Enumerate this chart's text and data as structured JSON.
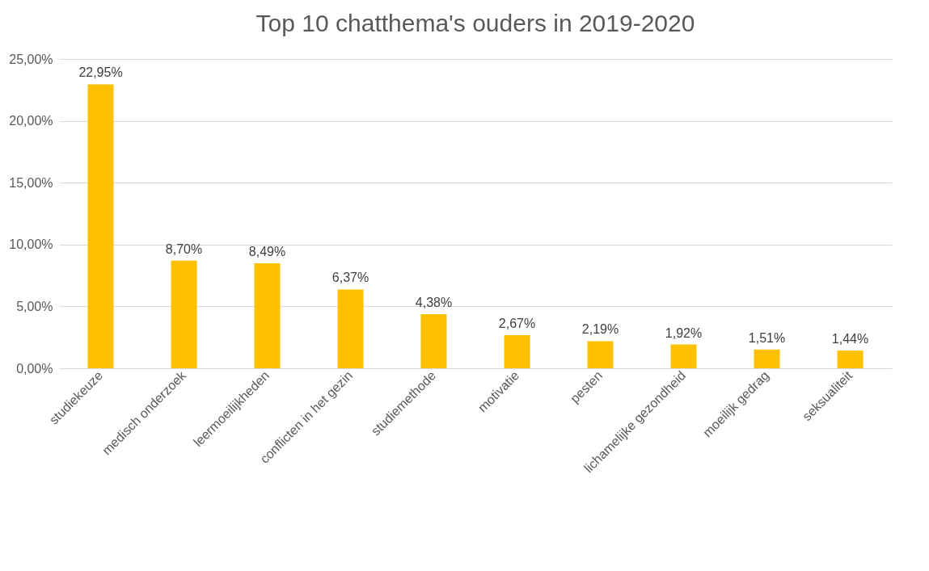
{
  "chart_data": {
    "type": "bar",
    "title": "Top 10 chatthema's ouders in 2019-2020",
    "categories": [
      "studiekeuze",
      "medisch onderzoek",
      "leermoeilijkheden",
      "conflicten in het gezin",
      "studiemethode",
      "motivatie",
      "pesten",
      "lichamelijke gezondheid",
      "moeilijk gedrag",
      "seksualiteit"
    ],
    "values": [
      22.95,
      8.7,
      8.49,
      6.37,
      4.38,
      2.67,
      2.19,
      1.92,
      1.51,
      1.44
    ],
    "value_labels": [
      "22,95%",
      "8,70%",
      "8,49%",
      "6,37%",
      "4,38%",
      "2,67%",
      "2,19%",
      "1,92%",
      "1,51%",
      "1,44%"
    ],
    "color": "#ffc000",
    "ylim": [
      0,
      25
    ],
    "yticks": [
      {
        "value": 0,
        "label": "0,00%"
      },
      {
        "value": 5,
        "label": "5,00%"
      },
      {
        "value": 10,
        "label": "10,00%"
      },
      {
        "value": 15,
        "label": "15,00%"
      },
      {
        "value": 20,
        "label": "20,00%"
      },
      {
        "value": 25,
        "label": "25,00%"
      }
    ],
    "grid": "y"
  }
}
